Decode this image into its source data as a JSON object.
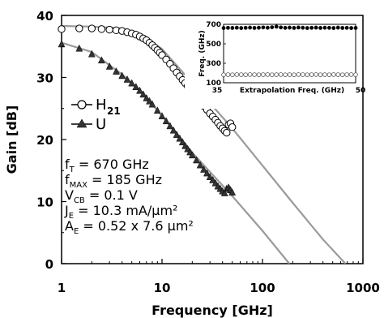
{
  "chart_data": {
    "type": "scatter",
    "xscale": "log",
    "xlim": [
      1,
      1000
    ],
    "ylim": [
      0,
      40
    ],
    "xlabel": "Frequency [GHz]",
    "ylabel": "Gain [dB]",
    "xticks": [
      "1",
      "10",
      "100",
      "1000"
    ],
    "yticks": [
      "0",
      "10",
      "20",
      "30",
      "40"
    ],
    "legend": {
      "position": "left-middle",
      "entries": [
        "H21",
        "U"
      ]
    },
    "series": [
      {
        "name": "H21",
        "marker": "open-circle",
        "color": "#000000",
        "x": [
          1.0,
          1.5,
          2.0,
          2.5,
          3.0,
          3.5,
          4.0,
          4.5,
          5.0,
          5.5,
          6.0,
          6.5,
          7.0,
          7.5,
          8.0,
          8.5,
          9.0,
          9.5,
          10.0,
          11.0,
          12.0,
          13.0,
          14.0,
          15.0,
          16.0,
          17.0,
          18.0,
          19.0,
          20.0,
          22.0,
          24.0,
          26.0,
          28.0,
          30.0,
          32.0,
          34.0,
          36.0,
          38.0,
          40.0,
          42.0,
          44.0,
          46.0,
          48.0,
          50.0
        ],
        "y": [
          37.8,
          37.9,
          37.9,
          37.8,
          37.7,
          37.6,
          37.5,
          37.3,
          37.1,
          36.9,
          36.6,
          36.3,
          36.0,
          35.6,
          35.2,
          34.8,
          34.4,
          34.0,
          33.6,
          32.9,
          32.2,
          31.5,
          30.8,
          30.2,
          29.6,
          29.1,
          28.6,
          28.1,
          27.6,
          26.8,
          26.1,
          25.4,
          24.8,
          24.2,
          23.7,
          23.2,
          22.7,
          22.2,
          21.8,
          21.4,
          21.1,
          22.4,
          22.6,
          22.0
        ]
      },
      {
        "name": "U",
        "marker": "filled-triangle",
        "color": "#000000",
        "x": [
          1.0,
          1.5,
          2.0,
          2.5,
          3.0,
          3.5,
          4.0,
          4.5,
          5.0,
          5.5,
          6.0,
          6.5,
          7.0,
          7.5,
          8.0,
          9.0,
          10.0,
          11.0,
          12.0,
          13.0,
          14.0,
          15.0,
          16.0,
          17.0,
          18.0,
          19.0,
          20.0,
          22.0,
          24.0,
          26.0,
          28.0,
          30.0,
          32.0,
          34.0,
          36.0,
          38.0,
          40.0,
          42.0,
          44.0,
          46.0,
          48.0,
          50.0
        ],
        "y": [
          35.3,
          34.6,
          33.7,
          32.7,
          31.7,
          30.9,
          30.2,
          29.6,
          29.0,
          28.4,
          27.8,
          27.2,
          26.6,
          26.1,
          25.6,
          24.6,
          23.7,
          22.9,
          22.1,
          21.4,
          20.7,
          20.1,
          19.5,
          18.9,
          18.4,
          17.9,
          17.4,
          16.6,
          15.8,
          15.1,
          14.5,
          13.9,
          13.4,
          12.9,
          12.4,
          12.0,
          11.6,
          11.3,
          12.0,
          12.2,
          11.8,
          11.4
        ]
      },
      {
        "name": "H21 -20dB/dec fit",
        "type": "line",
        "color": "#9a9a9a",
        "x": [
          1.0,
          2.0,
          4.0,
          6.0,
          10.0,
          20.0,
          50.0,
          100.0,
          200.0,
          400.0,
          670.0
        ],
        "y": [
          38.3,
          38.2,
          37.9,
          37.0,
          34.6,
          29.1,
          21.8,
          15.8,
          9.8,
          3.9,
          0.0
        ]
      },
      {
        "name": "U -20dB/dec fit",
        "type": "line",
        "color": "#9a9a9a",
        "x": [
          1.0,
          2.0,
          4.0,
          6.0,
          10.0,
          20.0,
          50.0,
          100.0,
          185.0
        ],
        "y": [
          35.6,
          34.1,
          30.5,
          28.0,
          23.8,
          17.9,
          10.9,
          5.3,
          0.0
        ]
      }
    ],
    "annotations": [
      {
        "id": "ft",
        "main": "f",
        "sub": "T",
        "rest": " = 670 GHz"
      },
      {
        "id": "fmax",
        "main": "f",
        "sub": "MAX",
        "rest": " = 185 GHz"
      },
      {
        "id": "vcb",
        "main": "V",
        "sub": "CB",
        "rest": " = 0.1 V"
      },
      {
        "id": "je",
        "main": "J",
        "sub": "E",
        "rest": " = 10.3 mA/μm²"
      },
      {
        "id": "ae",
        "main": "A",
        "sub": "E",
        "rest": " = 0.52 x 7.6 μm²"
      }
    ],
    "legend_labels": {
      "h21_main": "H",
      "h21_sub": "21",
      "u": "U"
    },
    "inset": {
      "type": "scatter",
      "xlabel": "Extrapolation Freq. (GHz)",
      "ylabel": "Freq. (GHz)",
      "xlim": [
        35,
        50
      ],
      "ylim": [
        100,
        700
      ],
      "xticks": [
        "35",
        "50"
      ],
      "yticks": [
        "100",
        "300",
        "500",
        "700"
      ],
      "series": [
        {
          "name": "fT",
          "marker": "filled-circle",
          "x": [
            35,
            35.5,
            36,
            36.5,
            37,
            37.5,
            38,
            38.5,
            39,
            39.5,
            40,
            40.5,
            41,
            41.5,
            42,
            42.5,
            43,
            43.5,
            44,
            44.5,
            45,
            45.5,
            46,
            46.5,
            47,
            47.5,
            48,
            48.5,
            49,
            49.5,
            50
          ],
          "y": [
            662,
            664,
            663,
            665,
            662,
            664,
            666,
            663,
            665,
            668,
            665,
            670,
            676,
            668,
            664,
            666,
            663,
            667,
            665,
            662,
            664,
            666,
            663,
            665,
            664,
            662,
            666,
            663,
            664,
            662,
            663
          ]
        },
        {
          "name": "fMAX",
          "marker": "open-circle",
          "x": [
            35,
            35.5,
            36,
            36.5,
            37,
            37.5,
            38,
            38.5,
            39,
            39.5,
            40,
            40.5,
            41,
            41.5,
            42,
            42.5,
            43,
            43.5,
            44,
            44.5,
            45,
            45.5,
            46,
            46.5,
            47,
            47.5,
            48,
            48.5,
            49,
            49.5,
            50
          ],
          "y": [
            182,
            183,
            182,
            184,
            183,
            182,
            184,
            183,
            182,
            183,
            184,
            182,
            183,
            184,
            182,
            183,
            182,
            184,
            183,
            182,
            183,
            184,
            182,
            183,
            182,
            184,
            183,
            182,
            183,
            184,
            182
          ]
        }
      ]
    }
  }
}
